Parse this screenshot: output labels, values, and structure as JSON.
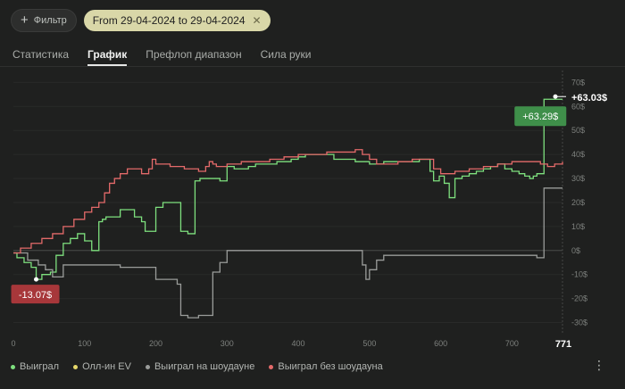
{
  "toolbar": {
    "filter_label": "Фильтр",
    "date_range": "From 29-04-2024 to 29-04-2024"
  },
  "tabs": [
    {
      "label": "Статистика",
      "active": false
    },
    {
      "label": "График",
      "active": true
    },
    {
      "label": "Префлоп диапазон",
      "active": false
    },
    {
      "label": "Сила руки",
      "active": false
    }
  ],
  "legend": [
    {
      "label": "Выиграл",
      "color": "#7ee07e"
    },
    {
      "label": "Олл-ин EV",
      "color": "#e6d76a"
    },
    {
      "label": "Выиграл на шоудауне",
      "color": "#9a9c9a"
    },
    {
      "label": "Выиграл без шоудауна",
      "color": "#e46a6a"
    }
  ],
  "chart_data": {
    "type": "line",
    "x_ticks": [
      "0",
      "100",
      "200",
      "300",
      "400",
      "500",
      "600",
      "700"
    ],
    "x_end_label": "771",
    "y_ticks": [
      "70$",
      "60$",
      "50$",
      "40$",
      "30$",
      "20$",
      "10$",
      "0$",
      "-10$",
      "-20$",
      "-30$"
    ],
    "xlim": [
      0,
      771
    ],
    "ylim": [
      -35,
      72
    ],
    "min_label": "-13.07$",
    "max_label": "+63.29$",
    "end_value_label": "+63.03$",
    "series": [
      {
        "name": "Выиграл",
        "color": "#7ee07e",
        "x": [
          0,
          5,
          15,
          25,
          32,
          40,
          52,
          60,
          70,
          80,
          90,
          100,
          110,
          120,
          125,
          130,
          140,
          150,
          160,
          170,
          180,
          185,
          195,
          200,
          210,
          220,
          225,
          235,
          245,
          255,
          262,
          270,
          280,
          290,
          300,
          310,
          320,
          330,
          340,
          350,
          360,
          370,
          380,
          390,
          400,
          410,
          420,
          430,
          440,
          450,
          460,
          470,
          480,
          490,
          500,
          510,
          520,
          530,
          540,
          550,
          560,
          570,
          580,
          585,
          590,
          598,
          605,
          612,
          620,
          630,
          640,
          650,
          660,
          670,
          680,
          690,
          700,
          710,
          718,
          725,
          730,
          735,
          742,
          745,
          752,
          760,
          771
        ],
        "y": [
          -1,
          -3,
          -5,
          -7,
          -12,
          -10,
          -9,
          -2,
          3,
          5,
          7,
          4,
          0,
          12,
          13,
          14,
          14,
          17,
          17,
          14,
          12,
          8,
          8,
          18,
          20,
          20,
          20,
          8,
          7,
          29,
          30,
          30,
          30,
          29,
          35,
          34,
          34,
          35,
          36,
          36,
          36,
          37,
          37,
          38,
          39,
          40,
          40,
          40,
          40,
          38,
          38,
          38,
          37,
          37,
          36,
          36,
          37,
          37,
          37,
          37,
          37,
          38,
          38,
          33,
          29,
          31,
          28,
          22,
          30,
          31,
          32,
          33,
          34,
          35,
          36,
          34,
          33,
          32,
          31,
          30,
          31,
          32,
          32,
          63,
          63,
          63,
          63
        ]
      },
      {
        "name": "Выиграл на шоудауне",
        "color": "#9a9c9a",
        "x": [
          0,
          20,
          35,
          45,
          55,
          70,
          100,
          120,
          150,
          180,
          200,
          230,
          235,
          245,
          260,
          280,
          290,
          300,
          350,
          400,
          450,
          480,
          490,
          495,
          500,
          510,
          520,
          550,
          600,
          650,
          700,
          735,
          742,
          745,
          760,
          771
        ],
        "y": [
          -1,
          -4,
          -6,
          -8,
          -11,
          -6,
          -6,
          -6,
          -7,
          -7,
          -12,
          -14,
          -27,
          -28,
          -27,
          -9,
          -5,
          0,
          0,
          0,
          0,
          0,
          -6,
          -12,
          -8,
          -4,
          -2,
          -2,
          -2,
          -2,
          -2,
          -3,
          -3,
          26,
          26,
          26
        ]
      },
      {
        "name": "Выиграл без шоудауна",
        "color": "#e46a6a",
        "x": [
          0,
          10,
          25,
          40,
          55,
          70,
          85,
          100,
          110,
          120,
          128,
          135,
          142,
          150,
          160,
          170,
          180,
          190,
          195,
          200,
          210,
          220,
          240,
          260,
          270,
          275,
          280,
          285,
          290,
          300,
          320,
          340,
          360,
          380,
          400,
          420,
          440,
          460,
          480,
          490,
          500,
          510,
          520,
          540,
          560,
          580,
          590,
          600,
          620,
          640,
          660,
          680,
          700,
          720,
          740,
          750,
          760,
          771
        ],
        "y": [
          -1,
          1,
          3,
          5,
          7,
          10,
          13,
          16,
          18,
          20,
          24,
          28,
          30,
          32,
          34,
          34,
          32,
          34,
          38,
          36,
          36,
          35,
          34,
          33,
          35,
          37,
          36,
          35,
          35,
          36,
          37,
          37,
          38,
          39,
          40,
          40,
          41,
          41,
          42,
          40,
          38,
          36,
          36,
          37,
          38,
          38,
          34,
          32,
          33,
          34,
          35,
          36,
          37,
          37,
          36,
          35,
          36,
          37
        ]
      }
    ]
  }
}
